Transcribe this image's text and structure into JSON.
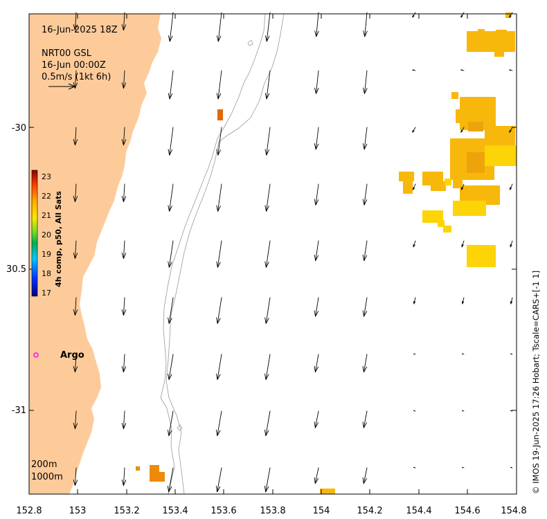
{
  "header": {
    "date_line": "16-Jun-2025 18Z",
    "product_line": "NRT00 GSL",
    "product_time": "16-Jun 00:00Z",
    "scale_label": "0.5m/s (1kt 6h)"
  },
  "axes": {
    "x_ticks": [
      "152.8",
      "153",
      "153.2",
      "153.4",
      "153.6",
      "153.8",
      "154",
      "154.2",
      "154.4",
      "154.6",
      "154.8"
    ],
    "y_ticks": [
      "-30",
      "30.5",
      "-31"
    ]
  },
  "colorbar": {
    "title": "4h comp, p50, All Sats",
    "labels": [
      "23",
      "22",
      "21",
      "20",
      "19",
      "18",
      "17"
    ]
  },
  "argo": {
    "label": "Argo",
    "color": "#ff00ff"
  },
  "isobaths": {
    "shallow": "200m",
    "deep": "1000m"
  },
  "credit": "© IMOS 19-Jun-2025 17:26 Hobart; Tscale=CARS+[-1 1]",
  "colors": {
    "land": "#fdcb9a",
    "isobath": "#999999",
    "sst_warm": "#f7b80b",
    "sst_mid": "#fcd408",
    "sst_hot": "#e06a06"
  }
}
